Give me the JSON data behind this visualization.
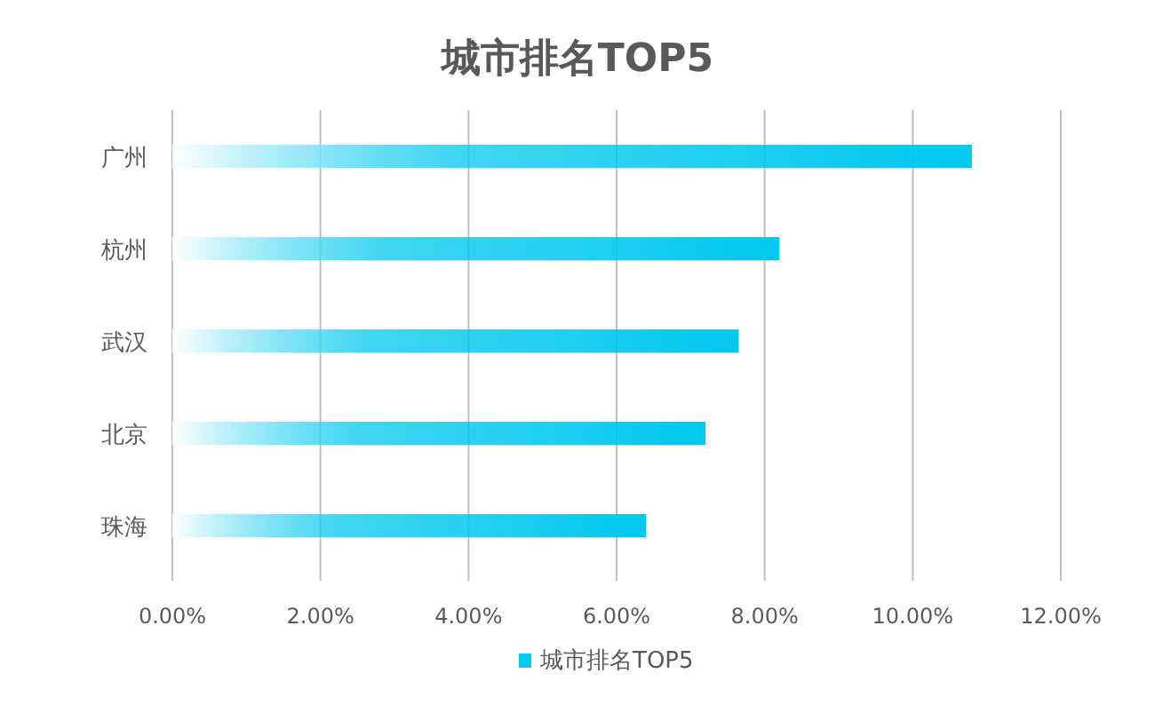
{
  "chart_data": {
    "type": "bar",
    "orientation": "horizontal",
    "title": "城市排名TOP5",
    "categories": [
      "广州",
      "杭州",
      "武汉",
      "北京",
      "珠海"
    ],
    "series": [
      {
        "name": "城市排名TOP5",
        "color": "#00c8ee",
        "values": [
          10.8,
          8.2,
          7.65,
          7.2,
          6.4
        ]
      }
    ],
    "xlim": [
      0,
      12
    ],
    "xticks": [
      {
        "value": 0,
        "label": "0.00%"
      },
      {
        "value": 2,
        "label": "2.00%"
      },
      {
        "value": 4,
        "label": "4.00%"
      },
      {
        "value": 6,
        "label": "6.00%"
      },
      {
        "value": 8,
        "label": "8.00%"
      },
      {
        "value": 10,
        "label": "10.00%"
      },
      {
        "value": 12,
        "label": "12.00%"
      }
    ],
    "grid": "x",
    "legend": "bottom"
  }
}
